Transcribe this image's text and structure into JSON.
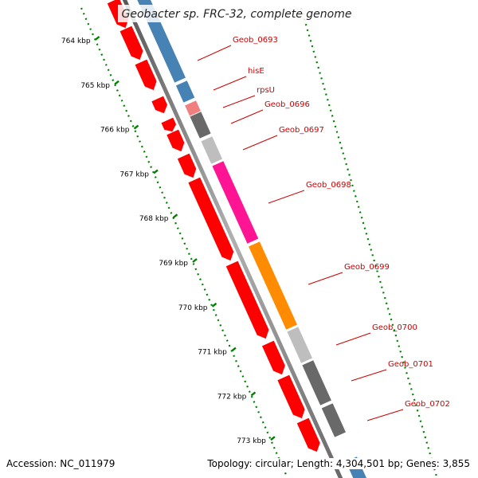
{
  "title": "Geobacter sp. FRC-32, complete genome",
  "footer": {
    "accession": "Accession: NC_011979",
    "topology": "Topology: circular; Length: 4,304,501 bp; Genes: 3,855"
  },
  "ticks": [
    "764 kbp",
    "765 kbp",
    "766 kbp",
    "767 kbp",
    "768 kbp",
    "769 kbp",
    "770 kbp",
    "771 kbp",
    "772 kbp",
    "773 kbp"
  ],
  "gene_labels": [
    "Geob_0693",
    "hisE",
    "rpsU",
    "Geob_0696",
    "Geob_0697",
    "Geob_0698",
    "Geob_0699",
    "Geob_0700",
    "Geob_0701",
    "Geob_0702"
  ],
  "colors": {
    "red": "#ff0000",
    "blue": "#4682b4",
    "pink": "#ff1493",
    "orange": "#ff8c00",
    "dark_gray": "#696969",
    "light_gray": "#bebebe",
    "light_red": "#f08080",
    "label": "#cc0000",
    "tick": "#008000",
    "backbone": "#777777"
  }
}
